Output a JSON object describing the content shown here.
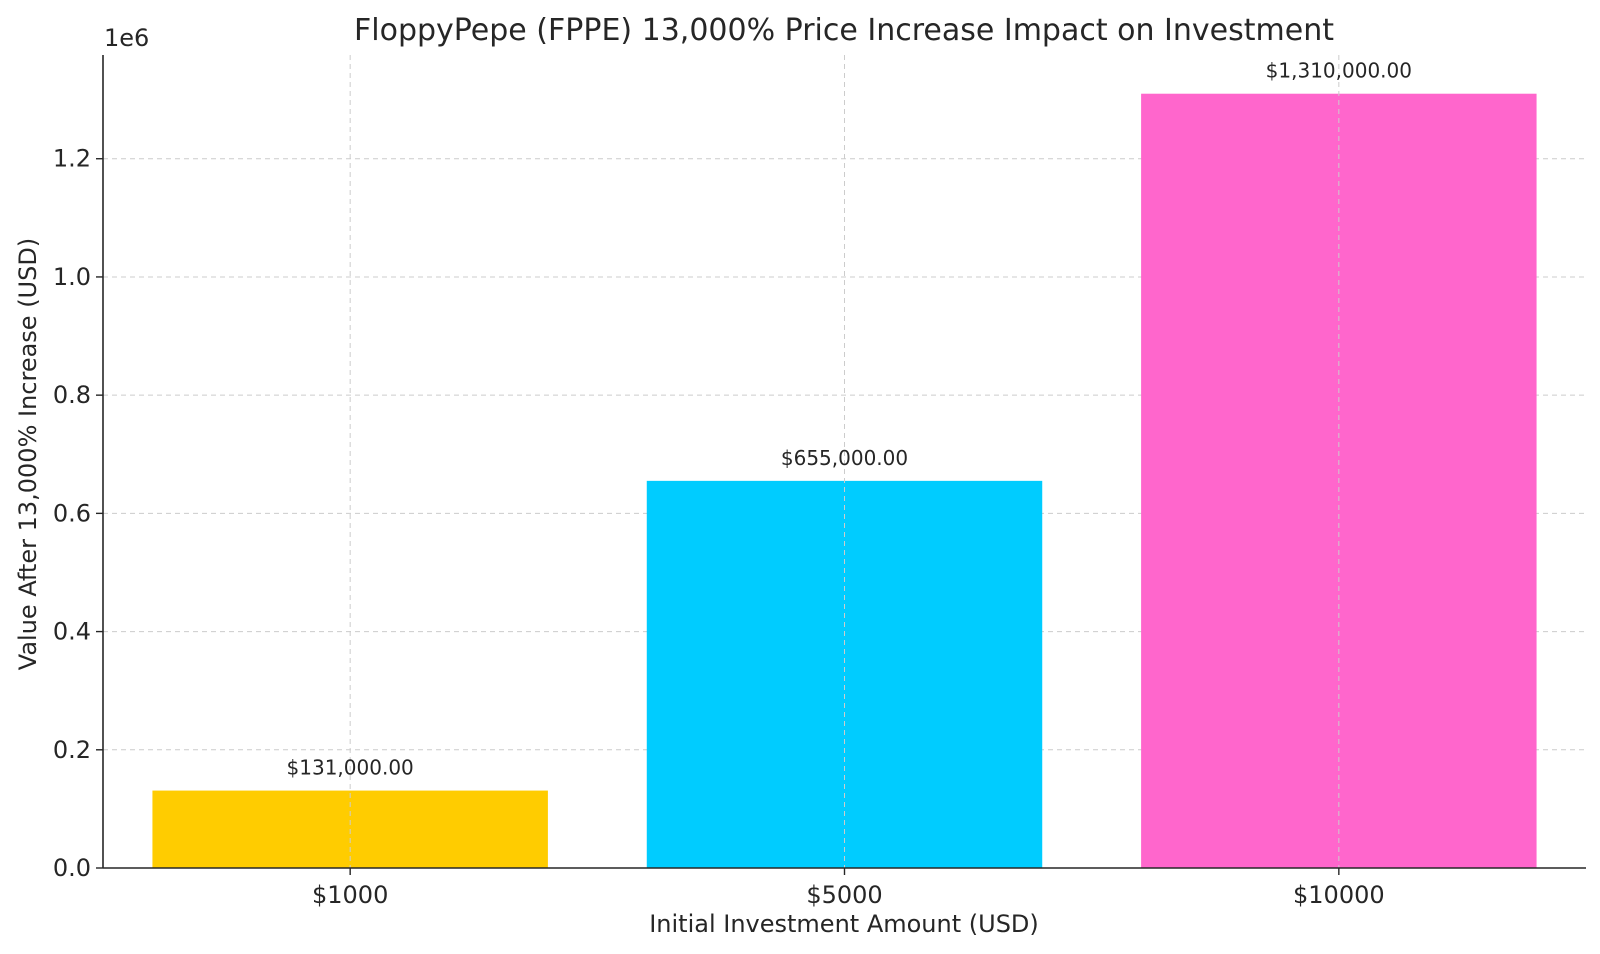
{
  "chart_data": {
    "type": "bar",
    "title": "FloppyPepe (FPPE) 13,000% Price Increase Impact on Investment",
    "xlabel": "Initial Investment Amount (USD)",
    "ylabel": "Value After 13,000% Increase (USD)",
    "y_offset_label": "1e6",
    "categories": [
      "$1000",
      "$5000",
      "$10000"
    ],
    "values": [
      131000,
      655000,
      1310000
    ],
    "data_labels": [
      "$131,000.00",
      "$655,000.00",
      "$1,310,000.00"
    ],
    "bar_colors": [
      "#ffcc00",
      "#00ccff",
      "#ff66cc"
    ],
    "ylim": [
      0,
      1375500
    ],
    "yticks": [
      0,
      200000,
      400000,
      600000,
      800000,
      1000000,
      1200000
    ],
    "ytick_labels": [
      "0.0",
      "0.2",
      "0.4",
      "0.6",
      "0.8",
      "1.0",
      "1.2"
    ],
    "grid": true,
    "legend": "none"
  }
}
